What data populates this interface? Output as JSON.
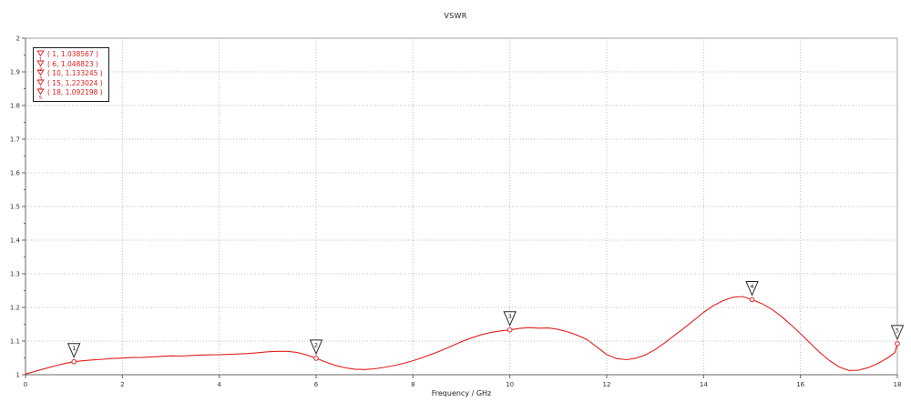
{
  "chart_data": {
    "type": "line",
    "title": "VSWR",
    "xlabel": "Frequency / GHz",
    "ylabel": "",
    "xlim": [
      0,
      18
    ],
    "ylim": [
      1,
      2
    ],
    "grid": true,
    "legend_position": "top-left",
    "x_ticks": [
      {
        "v": 0,
        "label": "0"
      },
      {
        "v": 2,
        "label": "2"
      },
      {
        "v": 4,
        "label": "4"
      },
      {
        "v": 6,
        "label": "6"
      },
      {
        "v": 8,
        "label": "8"
      },
      {
        "v": 10,
        "label": "10"
      },
      {
        "v": 12,
        "label": "12"
      },
      {
        "v": 14,
        "label": "14"
      },
      {
        "v": 16,
        "label": "16"
      },
      {
        "v": 18,
        "label": "18"
      }
    ],
    "y_ticks": [
      {
        "v": 1,
        "label": "1"
      },
      {
        "v": 1.1,
        "label": "1.1"
      },
      {
        "v": 1.2,
        "label": "1.2"
      },
      {
        "v": 1.3,
        "label": "1.3"
      },
      {
        "v": 1.4,
        "label": "1.4"
      },
      {
        "v": 1.5,
        "label": "1.5"
      },
      {
        "v": 1.6,
        "label": "1.6"
      },
      {
        "v": 1.7,
        "label": "1.7"
      },
      {
        "v": 1.8,
        "label": "1.8"
      },
      {
        "v": 1.9,
        "label": "1.9"
      },
      {
        "v": 2,
        "label": "2"
      }
    ],
    "y_minor_step": 0.05,
    "series": [
      {
        "name": "VSWR",
        "color": "#e02020",
        "points": [
          [
            0,
            1.002
          ],
          [
            0.2,
            1.01
          ],
          [
            0.4,
            1.018
          ],
          [
            0.6,
            1.026
          ],
          [
            0.8,
            1.033
          ],
          [
            1,
            1.0386
          ],
          [
            1.2,
            1.0415
          ],
          [
            1.4,
            1.044
          ],
          [
            1.6,
            1.046
          ],
          [
            1.8,
            1.048
          ],
          [
            2,
            1.0495
          ],
          [
            2.2,
            1.051
          ],
          [
            2.4,
            1.0515
          ],
          [
            2.6,
            1.053
          ],
          [
            2.8,
            1.0545
          ],
          [
            3,
            1.056
          ],
          [
            3.2,
            1.0555
          ],
          [
            3.4,
            1.057
          ],
          [
            3.6,
            1.0585
          ],
          [
            3.8,
            1.059
          ],
          [
            4,
            1.0595
          ],
          [
            4.2,
            1.0605
          ],
          [
            4.4,
            1.0615
          ],
          [
            4.6,
            1.063
          ],
          [
            4.8,
            1.0655
          ],
          [
            5,
            1.068
          ],
          [
            5.2,
            1.0695
          ],
          [
            5.4,
            1.0695
          ],
          [
            5.6,
            1.0665
          ],
          [
            5.8,
            1.059
          ],
          [
            6,
            1.0488
          ],
          [
            6.2,
            1.0375
          ],
          [
            6.4,
            1.0275
          ],
          [
            6.6,
            1.0205
          ],
          [
            6.8,
            1.0165
          ],
          [
            7,
            1.0155
          ],
          [
            7.2,
            1.0175
          ],
          [
            7.4,
            1.0215
          ],
          [
            7.6,
            1.027
          ],
          [
            7.8,
            1.0335
          ],
          [
            8,
            1.0415
          ],
          [
            8.2,
            1.051
          ],
          [
            8.4,
            1.0615
          ],
          [
            8.6,
            1.073
          ],
          [
            8.8,
            1.0855
          ],
          [
            9,
            1.098
          ],
          [
            9.2,
            1.109
          ],
          [
            9.4,
            1.1185
          ],
          [
            9.6,
            1.1255
          ],
          [
            9.8,
            1.13
          ],
          [
            10,
            1.1332
          ],
          [
            10.2,
            1.1375
          ],
          [
            10.4,
            1.14
          ],
          [
            10.6,
            1.1385
          ],
          [
            10.8,
            1.139
          ],
          [
            11,
            1.1345
          ],
          [
            11.2,
            1.127
          ],
          [
            11.4,
            1.117
          ],
          [
            11.6,
            1.104
          ],
          [
            11.8,
            1.082
          ],
          [
            12,
            1.06
          ],
          [
            12.2,
            1.048
          ],
          [
            12.4,
            1.0445
          ],
          [
            12.6,
            1.049
          ],
          [
            12.8,
            1.059
          ],
          [
            13,
            1.075
          ],
          [
            13.2,
            1.095
          ],
          [
            13.4,
            1.117
          ],
          [
            13.6,
            1.139
          ],
          [
            13.8,
            1.162
          ],
          [
            14,
            1.185
          ],
          [
            14.2,
            1.205
          ],
          [
            14.4,
            1.22
          ],
          [
            14.6,
            1.23
          ],
          [
            14.8,
            1.2325
          ],
          [
            15,
            1.223
          ],
          [
            15.2,
            1.2115
          ],
          [
            15.4,
            1.195
          ],
          [
            15.6,
            1.174
          ],
          [
            15.8,
            1.149
          ],
          [
            16,
            1.122
          ],
          [
            16.2,
            1.094
          ],
          [
            16.4,
            1.066
          ],
          [
            16.6,
            1.042
          ],
          [
            16.8,
            1.023
          ],
          [
            17,
            1.0125
          ],
          [
            17.2,
            1.0135
          ],
          [
            17.4,
            1.021
          ],
          [
            17.6,
            1.0335
          ],
          [
            17.8,
            1.05
          ],
          [
            17.95,
            1.066
          ],
          [
            18,
            1.092
          ]
        ]
      }
    ],
    "markers": [
      {
        "n": "1",
        "x": 1,
        "y": 1.038567,
        "label": "( 1, 1.038567 )"
      },
      {
        "n": "2",
        "x": 6,
        "y": 1.048823,
        "label": "( 6, 1.048823 )"
      },
      {
        "n": "3",
        "x": 10,
        "y": 1.133245,
        "label": "( 10, 1.133245 )"
      },
      {
        "n": "4",
        "x": 15,
        "y": 1.223024,
        "label": "( 15, 1.223024 )"
      },
      {
        "n": "5",
        "x": 18,
        "y": 1.092198,
        "label": "( 18, 1.092198 )"
      }
    ],
    "colors": {
      "curve": "#e02020",
      "grid": "#bdbdbd",
      "border": "#a3a3a3",
      "axis": "#666666",
      "tick_label": "#333333",
      "title": "#222222",
      "marker_outline": "#2a2a2a",
      "marker_number": "#111111",
      "legend_text": "#dd1c1c",
      "legend_border": "#1a1a1a"
    }
  }
}
